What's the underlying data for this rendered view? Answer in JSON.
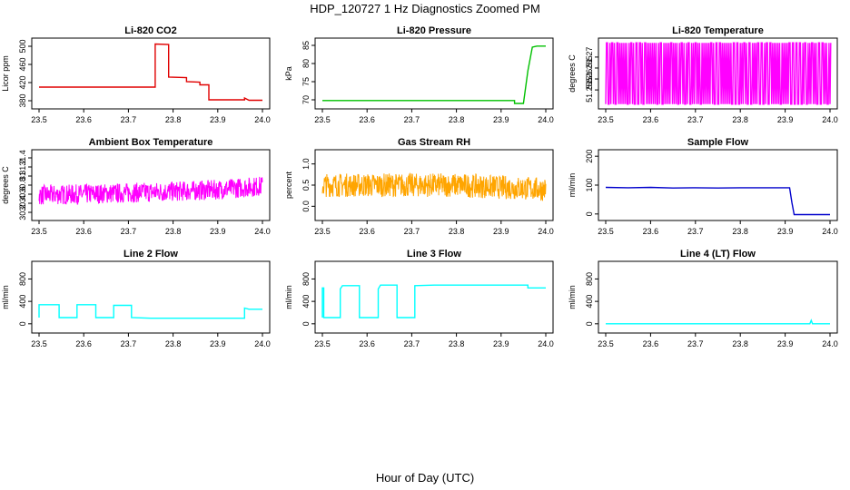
{
  "figure": {
    "title": "HDP_120727  1 Hz Diagnostics Zoomed PM",
    "xlabel": "Hour of Day (UTC)"
  },
  "chart_data": [
    {
      "type": "line",
      "title": "Li-820 CO2",
      "ylabel": "Licor ppm",
      "color": "#e00000",
      "xlim": [
        23.5,
        24.0
      ],
      "ylim": [
        370,
        510
      ],
      "xticks": [
        "23.5",
        "23.6",
        "23.7",
        "23.8",
        "23.9",
        "24.0"
      ],
      "yticks": [
        380,
        420,
        460,
        500
      ],
      "x": [
        23.5,
        23.55,
        23.6,
        23.65,
        23.7,
        23.75,
        23.76,
        23.76,
        23.79,
        23.79,
        23.83,
        23.83,
        23.86,
        23.86,
        23.88,
        23.88,
        23.92,
        23.96,
        23.96,
        23.97,
        24.0
      ],
      "y": [
        410,
        410,
        410,
        410,
        410,
        410,
        410,
        505,
        504,
        432,
        431,
        422,
        421,
        415,
        415,
        382,
        382,
        382,
        386,
        381,
        381
      ]
    },
    {
      "type": "line",
      "title": "Li-820 Pressure",
      "ylabel": "kPa",
      "color": "#00c000",
      "xlim": [
        23.5,
        24.0
      ],
      "ylim": [
        68.5,
        86
      ],
      "xticks": [
        "23.5",
        "23.6",
        "23.7",
        "23.8",
        "23.9",
        "24.0"
      ],
      "yticks": [
        70,
        75,
        80,
        85
      ],
      "x": [
        23.5,
        23.6,
        23.7,
        23.8,
        23.9,
        23.93,
        23.93,
        23.95,
        23.96,
        23.97,
        23.98,
        24.0
      ],
      "y": [
        69.8,
        69.8,
        69.8,
        69.8,
        69.8,
        69.8,
        69.0,
        69.0,
        78,
        84.5,
        84.8,
        84.8
      ]
    },
    {
      "type": "line",
      "title": "Li-820 Temperature",
      "ylabel": "degrees C",
      "color": "#ff00ff",
      "xlim": [
        23.5,
        24.0
      ],
      "ylim": [
        51.248,
        51.277
      ],
      "xticks": [
        "23.5",
        "23.6",
        "23.7",
        "23.8",
        "23.9",
        "24.0"
      ],
      "yticks": [
        51.255,
        51.26,
        51.265,
        51.27
      ],
      "pattern": "alternating",
      "values": [
        51.2485,
        51.2765
      ]
    },
    {
      "type": "line",
      "title": "Ambient Box Temperature",
      "ylabel": "degrees C",
      "color": "#ff00ff",
      "xlim": [
        23.5,
        24.0
      ],
      "ylim": [
        30.1,
        31.5
      ],
      "xticks": [
        "23.5",
        "23.6",
        "23.7",
        "23.8",
        "23.9",
        "24.0"
      ],
      "yticks": [
        30.2,
        30.4,
        30.6,
        30.8,
        31.0,
        31.2,
        31.4
      ],
      "pattern": "noise",
      "x": [
        23.5,
        23.6,
        23.7,
        23.8,
        23.9,
        24.0
      ],
      "y": [
        30.58,
        30.6,
        30.63,
        30.66,
        30.7,
        30.78
      ],
      "noise": 0.22
    },
    {
      "type": "line",
      "title": "Gas Stream RH",
      "ylabel": "percent",
      "color": "#ffa500",
      "xlim": [
        23.5,
        24.0
      ],
      "ylim": [
        -0.25,
        1.25
      ],
      "xticks": [
        "23.5",
        "23.6",
        "23.7",
        "23.8",
        "23.9",
        "24.0"
      ],
      "yticks": [
        "0.0",
        "0.5",
        "1.0"
      ],
      "pattern": "noise",
      "x": [
        23.5,
        23.6,
        23.7,
        23.8,
        23.9,
        24.0
      ],
      "y": [
        0.5,
        0.5,
        0.5,
        0.5,
        0.45,
        0.4
      ],
      "noise": 0.28
    },
    {
      "type": "line",
      "title": "Sample Flow",
      "ylabel": "ml/min",
      "color": "#0000cc",
      "xlim": [
        23.5,
        24.0
      ],
      "ylim": [
        -10,
        210
      ],
      "xticks": [
        "23.5",
        "23.6",
        "23.7",
        "23.8",
        "23.9",
        "24.0"
      ],
      "yticks": [
        0,
        100,
        200
      ],
      "x": [
        23.5,
        23.55,
        23.6,
        23.65,
        23.7,
        23.75,
        23.8,
        23.85,
        23.91,
        23.915,
        23.92,
        24.0
      ],
      "y": [
        92,
        91,
        92,
        90,
        91,
        90,
        91,
        91,
        91,
        40,
        -2,
        -2
      ]
    },
    {
      "type": "line",
      "title": "Line 2 Flow",
      "ylabel": "ml/min",
      "color": "#00ffff",
      "xlim": [
        23.5,
        24.0
      ],
      "ylim": [
        -100,
        1050
      ],
      "xticks": [
        "23.5",
        "23.6",
        "23.7",
        "23.8",
        "23.9",
        "24.0"
      ],
      "yticks": [
        0,
        400,
        800
      ],
      "x": [
        23.5,
        23.5,
        23.545,
        23.545,
        23.585,
        23.585,
        23.627,
        23.627,
        23.667,
        23.667,
        23.707,
        23.707,
        23.75,
        23.96,
        23.96,
        23.97,
        24.0
      ],
      "y": [
        110,
        340,
        340,
        110,
        110,
        340,
        340,
        110,
        110,
        330,
        330,
        110,
        100,
        100,
        280,
        260,
        260
      ]
    },
    {
      "type": "line",
      "title": "Line 3 Flow",
      "ylabel": "ml/min",
      "color": "#00ffff",
      "xlim": [
        23.5,
        24.0
      ],
      "ylim": [
        -100,
        1050
      ],
      "xticks": [
        "23.5",
        "23.6",
        "23.7",
        "23.8",
        "23.9",
        "24.0"
      ],
      "yticks": [
        0,
        400,
        800
      ],
      "x": [
        23.5,
        23.5,
        23.503,
        23.503,
        23.54,
        23.54,
        23.545,
        23.583,
        23.583,
        23.625,
        23.625,
        23.63,
        23.667,
        23.667,
        23.707,
        23.707,
        23.75,
        23.85,
        23.96,
        23.96,
        24.0
      ],
      "y": [
        110,
        640,
        640,
        110,
        110,
        620,
        680,
        680,
        110,
        110,
        620,
        690,
        690,
        110,
        110,
        680,
        690,
        690,
        690,
        640,
        640
      ]
    },
    {
      "type": "line",
      "title": "Line 4 (LT) Flow",
      "ylabel": "ml/min",
      "color": "#00ffff",
      "xlim": [
        23.5,
        24.0
      ],
      "ylim": [
        -100,
        1050
      ],
      "xticks": [
        "23.5",
        "23.6",
        "23.7",
        "23.8",
        "23.9",
        "24.0"
      ],
      "yticks": [
        0,
        400,
        800
      ],
      "x": [
        23.5,
        23.7,
        23.955,
        23.958,
        23.961,
        24.0
      ],
      "y": [
        0,
        0,
        0,
        60,
        0,
        0
      ]
    }
  ]
}
